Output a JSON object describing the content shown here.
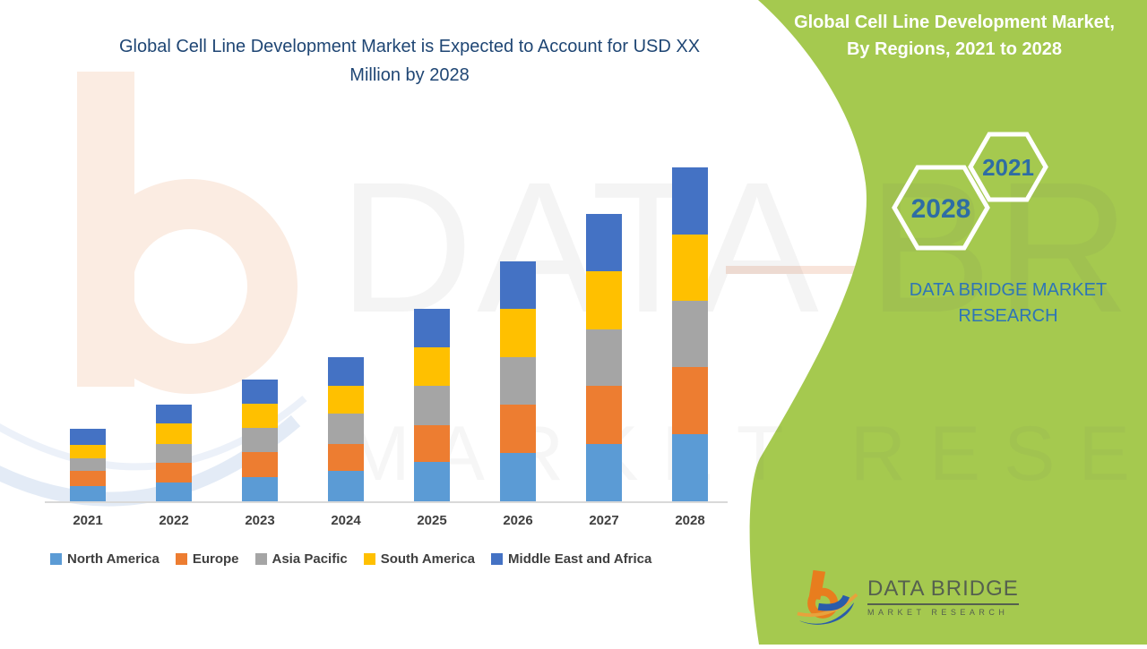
{
  "titles": {
    "left": "Global Cell Line Development Market is Expected to Account for USD XX Million by 2028",
    "right_panel": "Global Cell Line Development Market, By Regions, 2021 to 2028"
  },
  "hexagons": [
    {
      "label": "2021"
    },
    {
      "label": "2028"
    }
  ],
  "brand": {
    "panel_text": "DATA BRIDGE MARKET RESEARCH",
    "footer_logo_title": "DATA BRIDGE",
    "footer_logo_subtitle": "MARKET RESEARCH"
  },
  "watermark": {
    "row1": "DATA BRIDGE",
    "row2": "MARKET RESEARCH"
  },
  "colors": {
    "green_panel": "#A5C94F",
    "left_title": "#1F4674",
    "hexagon_year": "#2E6DA4",
    "panel_brand_text": "#2E75B6",
    "footer_logo_text": "#55604F",
    "axis_line": "#D9D9D9",
    "axis_label": "#3F3F3F",
    "logo_orange": "#E87D1E",
    "logo_blue": "#2A5CAA"
  },
  "chart_data": {
    "type": "bar",
    "stacked": true,
    "title": "Global Cell Line Development Market is Expected to Account for USD XX Million by 2028",
    "categories": [
      "2021",
      "2022",
      "2023",
      "2024",
      "2025",
      "2026",
      "2027",
      "2028"
    ],
    "series": [
      {
        "name": "North America",
        "color": "#5B9BD5",
        "values": [
          17,
          21,
          27,
          34,
          44,
          54,
          64,
          75
        ]
      },
      {
        "name": "Europe",
        "color": "#ED7D31",
        "values": [
          17,
          22,
          28,
          30,
          41,
          54,
          65,
          75
        ]
      },
      {
        "name": "Asia Pacific",
        "color": "#A5A5A5",
        "values": [
          14,
          21,
          27,
          34,
          44,
          53,
          63,
          74
        ]
      },
      {
        "name": "South America",
        "color": "#FFC000",
        "values": [
          15,
          23,
          27,
          31,
          43,
          54,
          65,
          74
        ]
      },
      {
        "name": "Middle East and Africa",
        "color": "#4472C4",
        "values": [
          18,
          21,
          27,
          32,
          43,
          53,
          64,
          75
        ]
      }
    ],
    "totals": [
      81,
      108,
      136,
      161,
      215,
      268,
      321,
      373
    ],
    "xlabel": "",
    "ylabel": "",
    "value_note": "Y axis is unlabeled in source (USD XX Million masked); values are relative estimates read from stacked bar heights",
    "legend_position": "bottom",
    "grid": false
  }
}
